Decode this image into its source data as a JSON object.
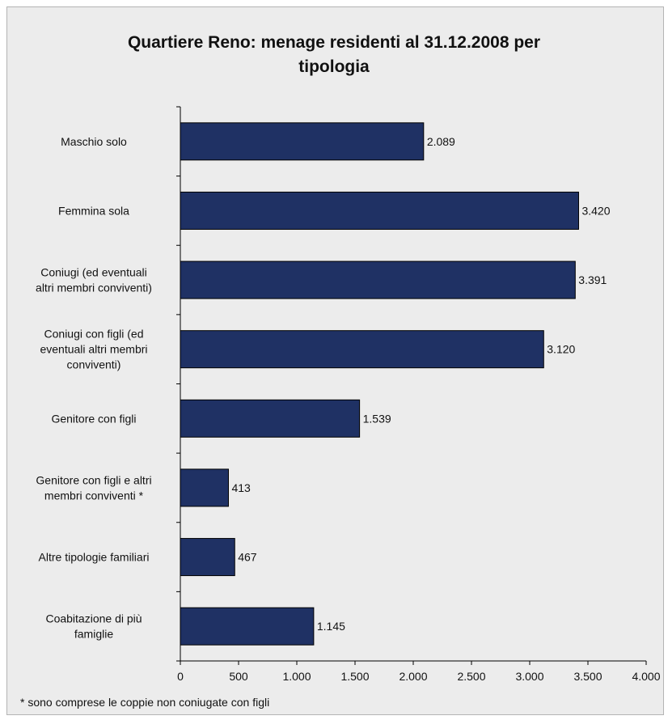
{
  "chart_data": {
    "type": "bar",
    "orientation": "horizontal",
    "title_lines": [
      "Quartiere Reno: menage residenti al 31.12.2008 per",
      "tipologia"
    ],
    "categories": [
      [
        "Maschio solo"
      ],
      [
        "Femmina sola"
      ],
      [
        "Coniugi (ed eventuali",
        "altri membri conviventi)"
      ],
      [
        "Coniugi con figli (ed",
        "eventuali altri membri",
        "conviventi)"
      ],
      [
        "Genitore con figli"
      ],
      [
        "Genitore con figli e altri",
        "membri conviventi *"
      ],
      [
        "Altre tipologie familiari"
      ],
      [
        "Coabitazione di più",
        "famiglie"
      ]
    ],
    "values": [
      2089,
      3420,
      3391,
      3120,
      1539,
      413,
      467,
      1145
    ],
    "value_labels": [
      "2.089",
      "3.420",
      "3.391",
      "3.120",
      "1.539",
      "413",
      "467",
      "1.145"
    ],
    "xlim": [
      0,
      4000
    ],
    "xticks": [
      0,
      500,
      1000,
      1500,
      2000,
      2500,
      3000,
      3500,
      4000
    ],
    "xtick_labels": [
      "0",
      "500",
      "1.000",
      "1.500",
      "2.000",
      "2.500",
      "3.000",
      "3.500",
      "4.000"
    ],
    "bar_color": "#1f3164",
    "background_color": "#ececec",
    "grid": false,
    "legend": "none",
    "footnote": "* sono comprese le coppie non coniugate con figli"
  }
}
